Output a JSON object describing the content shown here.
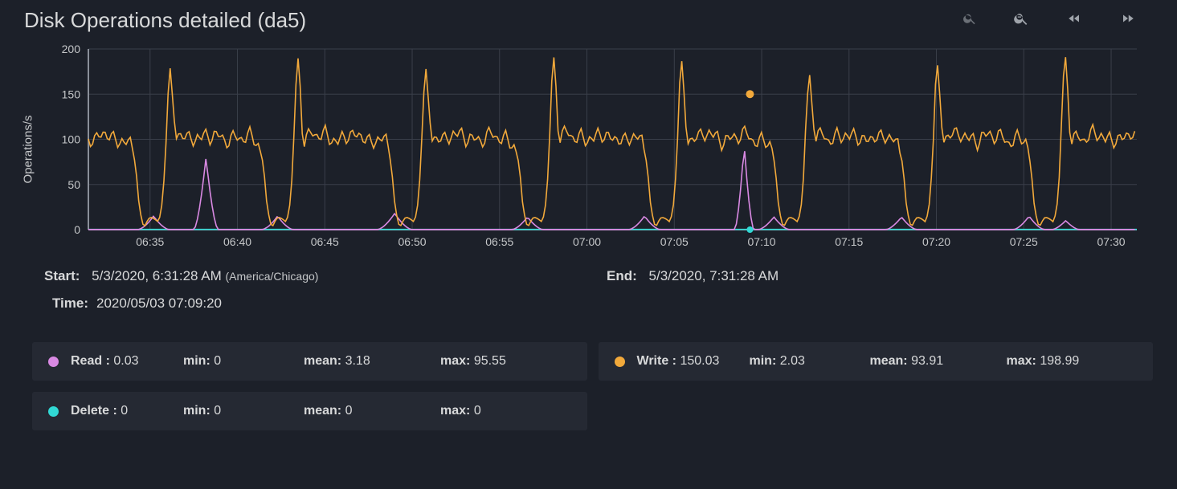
{
  "title": "Disk Operations detailed (da5)",
  "chart": {
    "type": "line",
    "ylabel": "Operations/s",
    "ylim": [
      0,
      200
    ],
    "ytick_step": 50,
    "yticks": [
      0,
      50,
      100,
      150,
      200
    ],
    "x_range_minutes": [
      31.47,
      91.47
    ],
    "xticks": [
      {
        "min": 35,
        "label": "06:35"
      },
      {
        "min": 40,
        "label": "06:40"
      },
      {
        "min": 45,
        "label": "06:45"
      },
      {
        "min": 50,
        "label": "06:50"
      },
      {
        "min": 55,
        "label": "06:55"
      },
      {
        "min": 60,
        "label": "07:00"
      },
      {
        "min": 65,
        "label": "07:05"
      },
      {
        "min": 70,
        "label": "07:10"
      },
      {
        "min": 75,
        "label": "07:15"
      },
      {
        "min": 80,
        "label": "07:20"
      },
      {
        "min": 85,
        "label": "07:25"
      },
      {
        "min": 90,
        "label": "07:30"
      }
    ],
    "background_color": "#1c2029",
    "grid_color": "#3a3f4a",
    "axis_color": "#8a8f99",
    "tick_font_size": 14,
    "series": {
      "write": {
        "color": "#f2a93b",
        "stroke_width": 1.6
      },
      "read": {
        "color": "#d989e3",
        "stroke_width": 1.6
      },
      "delete": {
        "color": "#31d8d4",
        "stroke_width": 1.6
      }
    },
    "hover_marker": {
      "series": "write",
      "x_min": 69.33,
      "y": 150.03,
      "color": "#f2a93b",
      "r": 5
    },
    "hover_marker2": {
      "series": "delete",
      "x_min": 69.33,
      "y": 0,
      "color": "#31d8d4",
      "r": 4
    },
    "write_cycle": {
      "period_min": 7.318,
      "phase_offset_min": 34.7,
      "pattern": [
        [
          0.0,
          4
        ],
        [
          0.15,
          10
        ],
        [
          0.3,
          14
        ],
        [
          0.55,
          12
        ],
        [
          0.8,
          8
        ],
        [
          1.0,
          30
        ],
        [
          1.15,
          70
        ],
        [
          1.25,
          120
        ],
        [
          1.35,
          170
        ],
        [
          1.45,
          190
        ],
        [
          1.55,
          170
        ],
        [
          1.65,
          120
        ],
        [
          1.8,
          95
        ],
        [
          2.0,
          110
        ],
        [
          2.25,
          100
        ],
        [
          2.5,
          108
        ],
        [
          2.75,
          95
        ],
        [
          3.0,
          112
        ],
        [
          3.25,
          98
        ],
        [
          3.5,
          107
        ],
        [
          3.75,
          93
        ],
        [
          4.0,
          110
        ],
        [
          4.25,
          96
        ],
        [
          4.5,
          108
        ],
        [
          4.75,
          94
        ],
        [
          5.0,
          111
        ],
        [
          5.25,
          97
        ],
        [
          5.5,
          106
        ],
        [
          5.75,
          92
        ],
        [
          6.0,
          108
        ],
        [
          6.25,
          95
        ],
        [
          6.5,
          100
        ],
        [
          6.8,
          70
        ],
        [
          7.0,
          25
        ],
        [
          7.2,
          6
        ]
      ],
      "cycle_peak_scale": [
        0.94,
        1.0,
        0.94,
        1.01,
        0.99,
        0.91,
        0.97,
        1.02,
        0.87
      ]
    },
    "read_bumps": [
      {
        "center_min": 35.2,
        "height": 15,
        "half_width": 0.9
      },
      {
        "center_min": 38.2,
        "height": 80,
        "half_width": 0.7
      },
      {
        "center_min": 42.3,
        "height": 15,
        "half_width": 0.9
      },
      {
        "center_min": 49.0,
        "height": 18,
        "half_width": 1.0
      },
      {
        "center_min": 56.6,
        "height": 14,
        "half_width": 0.9
      },
      {
        "center_min": 63.3,
        "height": 15,
        "half_width": 0.9
      },
      {
        "center_min": 69.0,
        "height": 95,
        "half_width": 0.55
      },
      {
        "center_min": 70.7,
        "height": 14,
        "half_width": 0.9
      },
      {
        "center_min": 78.0,
        "height": 14,
        "half_width": 0.9
      },
      {
        "center_min": 85.3,
        "height": 15,
        "half_width": 0.9
      },
      {
        "center_min": 87.4,
        "height": 10,
        "half_width": 0.8
      }
    ]
  },
  "meta": {
    "start_label": "Start:",
    "start_value": "5/3/2020, 6:31:28 AM",
    "start_tz": "(America/Chicago)",
    "end_label": "End:",
    "end_value": "5/3/2020, 7:31:28 AM",
    "time_label": "Time:",
    "time_value": "2020/05/03 07:09:20"
  },
  "legend": {
    "read": {
      "name": "Read",
      "value": "0.03",
      "min": "0",
      "mean": "3.18",
      "max": "95.55",
      "color": "#d989e3"
    },
    "write": {
      "name": "Write",
      "value": "150.03",
      "min": "2.03",
      "mean": "93.91",
      "max": "198.99",
      "color": "#f2a93b"
    },
    "delete": {
      "name": "Delete",
      "value": "0",
      "min": "0",
      "mean": "0",
      "max": "0",
      "color": "#31d8d4"
    },
    "labels": {
      "min": "min:",
      "mean": "mean:",
      "max": "max:"
    }
  }
}
